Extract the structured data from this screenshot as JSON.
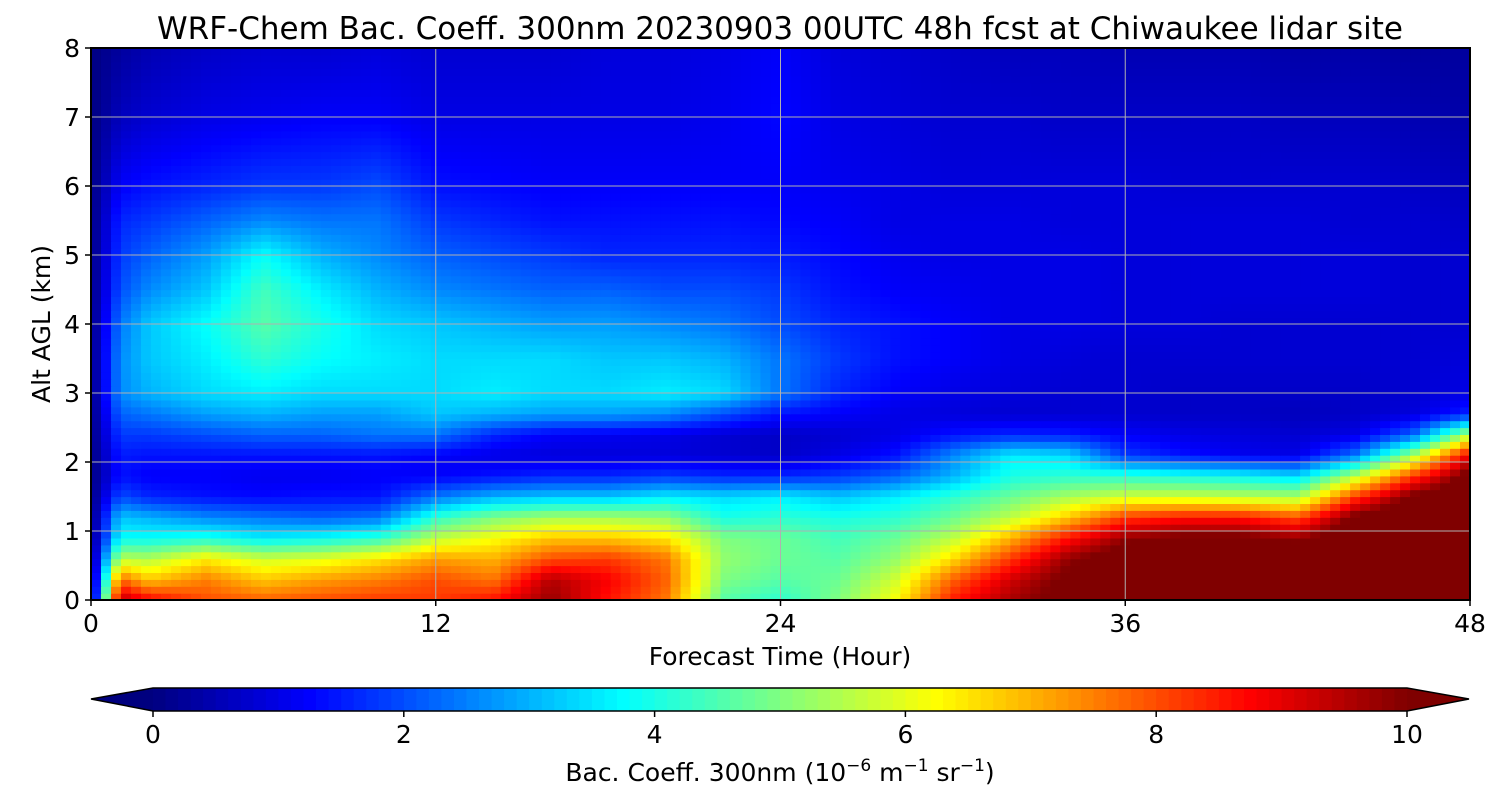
{
  "chart_data": {
    "type": "heatmap",
    "title": "WRF-Chem Bac. Coeff. 300nm  20230903 00UTC 48h fcst at Chiwaukee lidar site",
    "xlabel": "Forecast Time (Hour)",
    "ylabel": "Alt AGL (km)",
    "xlim": [
      0,
      48
    ],
    "ylim": [
      0,
      8
    ],
    "xticks": [
      "0",
      "12",
      "24",
      "36",
      "48"
    ],
    "yticks": [
      "0",
      "1",
      "2",
      "3",
      "4",
      "5",
      "6",
      "7",
      "8"
    ],
    "grid": true,
    "colorscale": "jet",
    "colorbar": {
      "label_main": "Bac. Coeff. 300nm  (10",
      "label_exp1": "−6",
      "label_mid": " m",
      "label_exp2": "−1",
      "label_tail": " sr",
      "label_exp3": "−1",
      "label_close": ")",
      "range": [
        0,
        10
      ],
      "extend": "both",
      "ticks": [
        "0",
        "2",
        "4",
        "6",
        "8",
        "10"
      ]
    },
    "x_hours": [
      0,
      1,
      2,
      4,
      6,
      8,
      10,
      12,
      14,
      16,
      18,
      20,
      22,
      24,
      26,
      28,
      30,
      32,
      34,
      36,
      38,
      40,
      42,
      44,
      46,
      48
    ],
    "z_km": [
      0,
      0.3,
      0.6,
      0.9,
      1.2,
      1.5,
      1.8,
      2.1,
      2.4,
      2.7,
      3.0,
      3.5,
      4.0,
      4.5,
      5.0,
      5.5,
      6.0,
      7.0,
      8.0
    ],
    "values": [
      [
        0.0,
        9.5,
        8.8,
        8.0,
        7.8,
        8.0,
        8.2,
        8.2,
        8.6,
        9.8,
        8.6,
        7.6,
        4.6,
        4.2,
        5.0,
        6.2,
        8.5,
        9.6,
        10.4,
        10.8,
        11.0,
        11.0,
        11.0,
        11.0,
        11.0,
        11.0
      ],
      [
        0.0,
        7.8,
        6.8,
        7.5,
        6.8,
        7.2,
        7.5,
        8.0,
        7.6,
        9.5,
        8.8,
        7.8,
        5.0,
        4.6,
        4.8,
        5.8,
        7.8,
        9.2,
        10.2,
        10.8,
        11.0,
        11.0,
        11.0,
        11.0,
        11.0,
        11.0
      ],
      [
        0.0,
        5.6,
        5.5,
        6.4,
        5.8,
        6.0,
        6.5,
        7.2,
        7.0,
        8.0,
        8.2,
        7.6,
        5.2,
        4.8,
        4.6,
        5.2,
        6.6,
        8.2,
        9.8,
        10.6,
        11.0,
        11.0,
        10.8,
        11.0,
        11.0,
        11.0
      ],
      [
        0.0,
        3.8,
        3.8,
        4.0,
        3.6,
        3.8,
        4.2,
        5.6,
        6.2,
        6.8,
        6.8,
        6.5,
        5.0,
        4.8,
        4.4,
        4.8,
        5.6,
        7.0,
        8.6,
        9.8,
        10.2,
        10.2,
        9.8,
        10.8,
        11.0,
        11.0
      ],
      [
        0.0,
        3.2,
        3.0,
        2.6,
        2.4,
        2.2,
        2.4,
        4.2,
        5.0,
        5.4,
        5.4,
        5.2,
        4.0,
        4.2,
        4.0,
        4.2,
        4.8,
        5.6,
        6.8,
        8.2,
        8.6,
        8.6,
        8.0,
        10.2,
        11.0,
        11.0
      ],
      [
        0.0,
        2.0,
        1.6,
        1.4,
        1.3,
        1.4,
        1.4,
        2.4,
        3.0,
        3.2,
        3.2,
        3.6,
        3.4,
        3.6,
        3.2,
        3.6,
        4.2,
        4.8,
        5.4,
        5.8,
        5.8,
        5.6,
        5.4,
        8.2,
        10.2,
        11.0
      ],
      [
        0.0,
        1.4,
        1.2,
        1.2,
        1.1,
        1.1,
        1.2,
        1.2,
        1.4,
        1.6,
        1.6,
        1.8,
        1.6,
        1.6,
        1.8,
        2.2,
        3.0,
        4.0,
        4.2,
        4.2,
        4.0,
        3.8,
        3.4,
        5.6,
        8.2,
        10.4
      ],
      [
        0.0,
        1.5,
        1.4,
        1.4,
        1.4,
        1.4,
        1.4,
        1.2,
        1.0,
        0.9,
        0.9,
        0.9,
        0.8,
        0.7,
        1.0,
        1.4,
        2.6,
        3.6,
        3.4,
        1.8,
        1.4,
        1.1,
        1.0,
        2.4,
        5.4,
        9.0
      ],
      [
        0.0,
        1.8,
        1.8,
        2.0,
        2.2,
        2.2,
        2.4,
        2.4,
        1.6,
        1.2,
        1.1,
        1.0,
        0.8,
        0.7,
        0.8,
        1.0,
        1.4,
        1.6,
        1.5,
        1.2,
        1.0,
        0.9,
        0.8,
        1.0,
        2.2,
        5.6
      ],
      [
        0.0,
        2.2,
        2.4,
        2.8,
        3.0,
        2.8,
        2.8,
        3.2,
        3.0,
        2.8,
        2.8,
        2.6,
        2.0,
        1.4,
        1.2,
        1.0,
        0.9,
        0.8,
        0.8,
        0.8,
        0.7,
        0.7,
        0.6,
        0.7,
        0.9,
        1.6
      ],
      [
        0.0,
        2.6,
        3.0,
        3.4,
        3.6,
        3.4,
        3.4,
        3.4,
        3.6,
        3.4,
        3.4,
        3.6,
        3.4,
        2.4,
        1.6,
        1.2,
        1.0,
        0.9,
        0.8,
        0.8,
        0.7,
        0.7,
        0.7,
        0.7,
        0.8,
        1.0
      ],
      [
        0.0,
        2.6,
        3.2,
        3.6,
        4.2,
        3.8,
        3.6,
        3.4,
        3.4,
        3.4,
        3.2,
        3.2,
        3.0,
        2.4,
        1.8,
        1.4,
        1.2,
        1.0,
        0.9,
        0.8,
        0.8,
        0.8,
        0.8,
        0.8,
        0.8,
        0.9
      ],
      [
        0.0,
        2.4,
        3.2,
        3.8,
        4.6,
        4.0,
        3.4,
        3.2,
        3.0,
        2.8,
        2.8,
        2.6,
        2.4,
        2.0,
        1.6,
        1.4,
        1.2,
        1.0,
        1.0,
        0.9,
        0.9,
        0.8,
        0.8,
        0.8,
        0.8,
        0.8
      ],
      [
        0.0,
        2.0,
        2.6,
        3.2,
        4.4,
        3.6,
        3.0,
        2.6,
        2.4,
        2.2,
        2.2,
        2.0,
        2.0,
        1.8,
        1.4,
        1.2,
        1.1,
        1.0,
        1.0,
        0.9,
        0.9,
        0.9,
        0.9,
        0.9,
        0.8,
        0.8
      ],
      [
        0.0,
        1.8,
        2.2,
        2.8,
        3.8,
        3.0,
        2.6,
        2.2,
        2.0,
        1.8,
        1.6,
        1.6,
        1.6,
        1.5,
        1.3,
        1.1,
        1.0,
        1.0,
        1.0,
        0.9,
        0.9,
        0.9,
        0.9,
        0.9,
        0.8,
        0.8
      ],
      [
        0.0,
        1.6,
        1.8,
        2.2,
        2.6,
        2.4,
        2.4,
        1.8,
        1.6,
        1.4,
        1.4,
        1.4,
        1.4,
        1.3,
        1.2,
        1.0,
        1.0,
        1.0,
        0.9,
        0.9,
        0.9,
        0.9,
        0.9,
        0.8,
        0.8,
        0.7
      ],
      [
        0.0,
        1.2,
        1.4,
        1.6,
        1.8,
        1.8,
        2.0,
        1.4,
        1.3,
        1.2,
        1.2,
        1.2,
        1.2,
        1.2,
        1.1,
        1.0,
        0.9,
        0.9,
        0.9,
        0.9,
        0.8,
        0.8,
        0.8,
        0.8,
        0.7,
        0.6
      ],
      [
        0.0,
        0.6,
        0.8,
        1.0,
        1.1,
        1.2,
        1.2,
        1.0,
        1.0,
        1.0,
        1.0,
        1.0,
        1.1,
        1.3,
        1.0,
        0.9,
        0.8,
        0.8,
        0.7,
        0.7,
        0.7,
        0.7,
        0.6,
        0.6,
        0.5,
        0.4
      ],
      [
        0.0,
        0.3,
        0.5,
        0.7,
        0.8,
        0.8,
        0.9,
        0.8,
        0.8,
        0.8,
        0.9,
        0.9,
        1.0,
        1.2,
        0.9,
        0.8,
        0.7,
        0.6,
        0.6,
        0.5,
        0.5,
        0.5,
        0.4,
        0.4,
        0.3,
        0.3
      ]
    ]
  }
}
